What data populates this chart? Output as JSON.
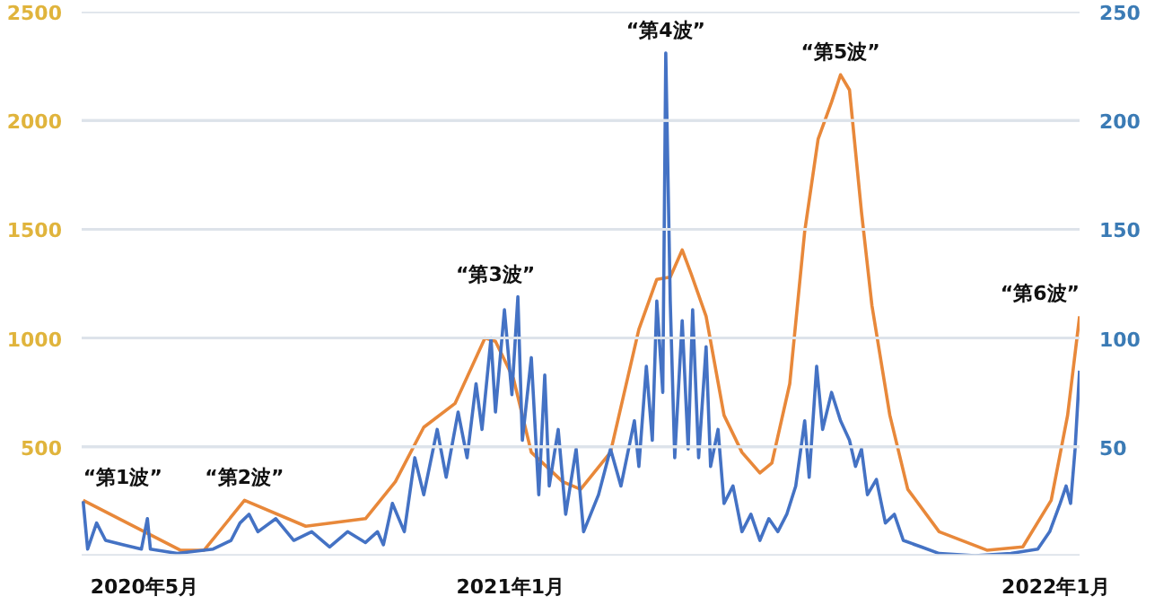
{
  "chart_data": {
    "type": "line",
    "xlim": [
      "2020-03-20",
      "2022-01-17"
    ],
    "xticks": [
      {
        "value": "2020-05-01",
        "label": "2020年5月"
      },
      {
        "value": "2021-01-01",
        "label": "2021年1月"
      },
      {
        "value": "2022-01-01",
        "label": "2022年1月"
      }
    ],
    "ylim": [
      0,
      2500
    ],
    "yticks": [
      {
        "value": 0,
        "label": null
      },
      500,
      1000,
      1500,
      2000,
      2500
    ],
    "y2lim": [
      0,
      250
    ],
    "y2ticks": [
      {
        "value": 0,
        "label": null
      },
      50,
      100,
      150,
      200,
      250
    ],
    "grid": "y",
    "line_style": "solid",
    "series": [
      {
        "color": "#e8883a",
        "x": [
          "2020-03-21",
          "2020-05-25",
          "2020-06-10",
          "2020-07-07",
          "2020-08-17",
          "2020-09-26",
          "2020-10-16",
          "2020-11-04",
          "2020-11-25",
          "2020-12-15",
          "2020-12-22",
          "2021-01-03",
          "2021-01-15",
          "2021-02-05",
          "2021-02-17",
          "2021-03-09",
          "2021-03-28",
          "2021-04-09",
          "2021-04-18",
          "2021-04-26",
          "2021-05-02",
          "2021-05-12",
          "2021-05-24",
          "2021-06-05",
          "2021-06-17",
          "2021-06-25",
          "2021-07-07",
          "2021-07-17",
          "2021-07-26",
          "2021-08-04",
          "2021-08-10",
          "2021-08-16",
          "2021-08-24",
          "2021-08-31",
          "2021-09-12",
          "2021-09-24",
          "2021-10-15",
          "2021-11-16",
          "2021-12-10",
          "2021-12-29",
          "2022-01-09",
          "2022-01-17"
        ],
        "values": [
          254,
          25,
          25,
          254,
          135,
          170,
          340,
          590,
          700,
          1000,
          985,
          815,
          475,
          340,
          305,
          475,
          1040,
          1270,
          1280,
          1405,
          1295,
          1100,
          645,
          475,
          380,
          425,
          790,
          1490,
          1915,
          2085,
          2210,
          2140,
          1580,
          1150,
          645,
          305,
          110,
          25,
          40,
          254,
          645,
          1100
        ]
      },
      {
        "color": "#4472c4",
        "axis": "y2",
        "x": [
          "2020-03-21",
          "2020-03-24",
          "2020-03-30",
          "2020-04-05",
          "2020-04-17",
          "2020-04-29",
          "2020-05-03",
          "2020-05-05",
          "2020-05-23",
          "2020-06-16",
          "2020-06-28",
          "2020-07-04",
          "2020-07-10",
          "2020-07-16",
          "2020-07-28",
          "2020-08-09",
          "2020-08-21",
          "2020-09-02",
          "2020-09-14",
          "2020-09-26",
          "2020-10-04",
          "2020-10-08",
          "2020-10-14",
          "2020-10-22",
          "2020-10-29",
          "2020-11-04",
          "2020-11-13",
          "2020-11-19",
          "2020-11-27",
          "2020-12-03",
          "2020-12-09",
          "2020-12-13",
          "2020-12-19",
          "2020-12-22",
          "2020-12-28",
          "2021-01-02",
          "2021-01-06",
          "2021-01-09",
          "2021-01-15",
          "2021-01-20",
          "2021-01-24",
          "2021-01-27",
          "2021-02-02",
          "2021-02-07",
          "2021-02-14",
          "2021-02-19",
          "2021-03-01",
          "2021-03-09",
          "2021-03-16",
          "2021-03-25",
          "2021-03-28",
          "2021-04-02",
          "2021-04-06",
          "2021-04-09",
          "2021-04-13",
          "2021-04-15",
          "2021-04-18",
          "2021-04-21",
          "2021-04-26",
          "2021-04-30",
          "2021-05-03",
          "2021-05-07",
          "2021-05-12",
          "2021-05-15",
          "2021-05-20",
          "2021-05-24",
          "2021-05-30",
          "2021-06-05",
          "2021-06-11",
          "2021-06-17",
          "2021-06-23",
          "2021-06-29",
          "2021-07-05",
          "2021-07-11",
          "2021-07-17",
          "2021-07-20",
          "2021-07-25",
          "2021-07-29",
          "2021-08-04",
          "2021-08-10",
          "2021-08-16",
          "2021-08-20",
          "2021-08-24",
          "2021-08-28",
          "2021-09-03",
          "2021-09-09",
          "2021-09-15",
          "2021-09-21",
          "2021-10-03",
          "2021-10-15",
          "2021-11-08",
          "2021-12-02",
          "2021-12-20",
          "2021-12-28",
          "2022-01-04",
          "2022-01-08",
          "2022-01-11",
          "2022-01-14",
          "2022-01-17"
        ],
        "values": [
          25,
          3,
          15,
          7,
          5,
          3,
          17,
          3,
          1,
          3,
          7,
          15,
          19,
          11,
          17,
          7,
          11,
          4,
          11,
          6,
          11,
          5,
          24,
          11,
          45,
          28,
          58,
          36,
          66,
          45,
          79,
          58,
          100,
          66,
          113,
          74,
          119,
          53,
          91,
          28,
          83,
          32,
          58,
          19,
          49,
          11,
          28,
          49,
          32,
          62,
          41,
          87,
          53,
          117,
          75,
          231,
          117,
          45,
          108,
          49,
          113,
          45,
          96,
          41,
          58,
          24,
          32,
          11,
          19,
          7,
          17,
          11,
          19,
          32,
          62,
          36,
          87,
          58,
          75,
          62,
          53,
          41,
          49,
          28,
          35,
          15,
          19,
          7,
          4,
          1,
          0,
          1,
          3,
          11,
          24,
          32,
          24,
          49,
          85
        ]
      }
    ],
    "annotations": [
      {
        "text": "“第1波”",
        "x": "2020-03-21",
        "y": 254
      },
      {
        "text": "“第2波”",
        "x": "2020-07-07",
        "y": 254
      },
      {
        "text": "“第3波”",
        "x": "2020-12-22",
        "y": 985
      },
      {
        "text": "“第4波”",
        "x": "2021-04-15",
        "y": 2310
      },
      {
        "text": "“第5波”",
        "x": "2021-08-10",
        "y": 2210
      },
      {
        "text": "“第6波”",
        "x": "2022-01-17",
        "y": 1100
      }
    ]
  }
}
